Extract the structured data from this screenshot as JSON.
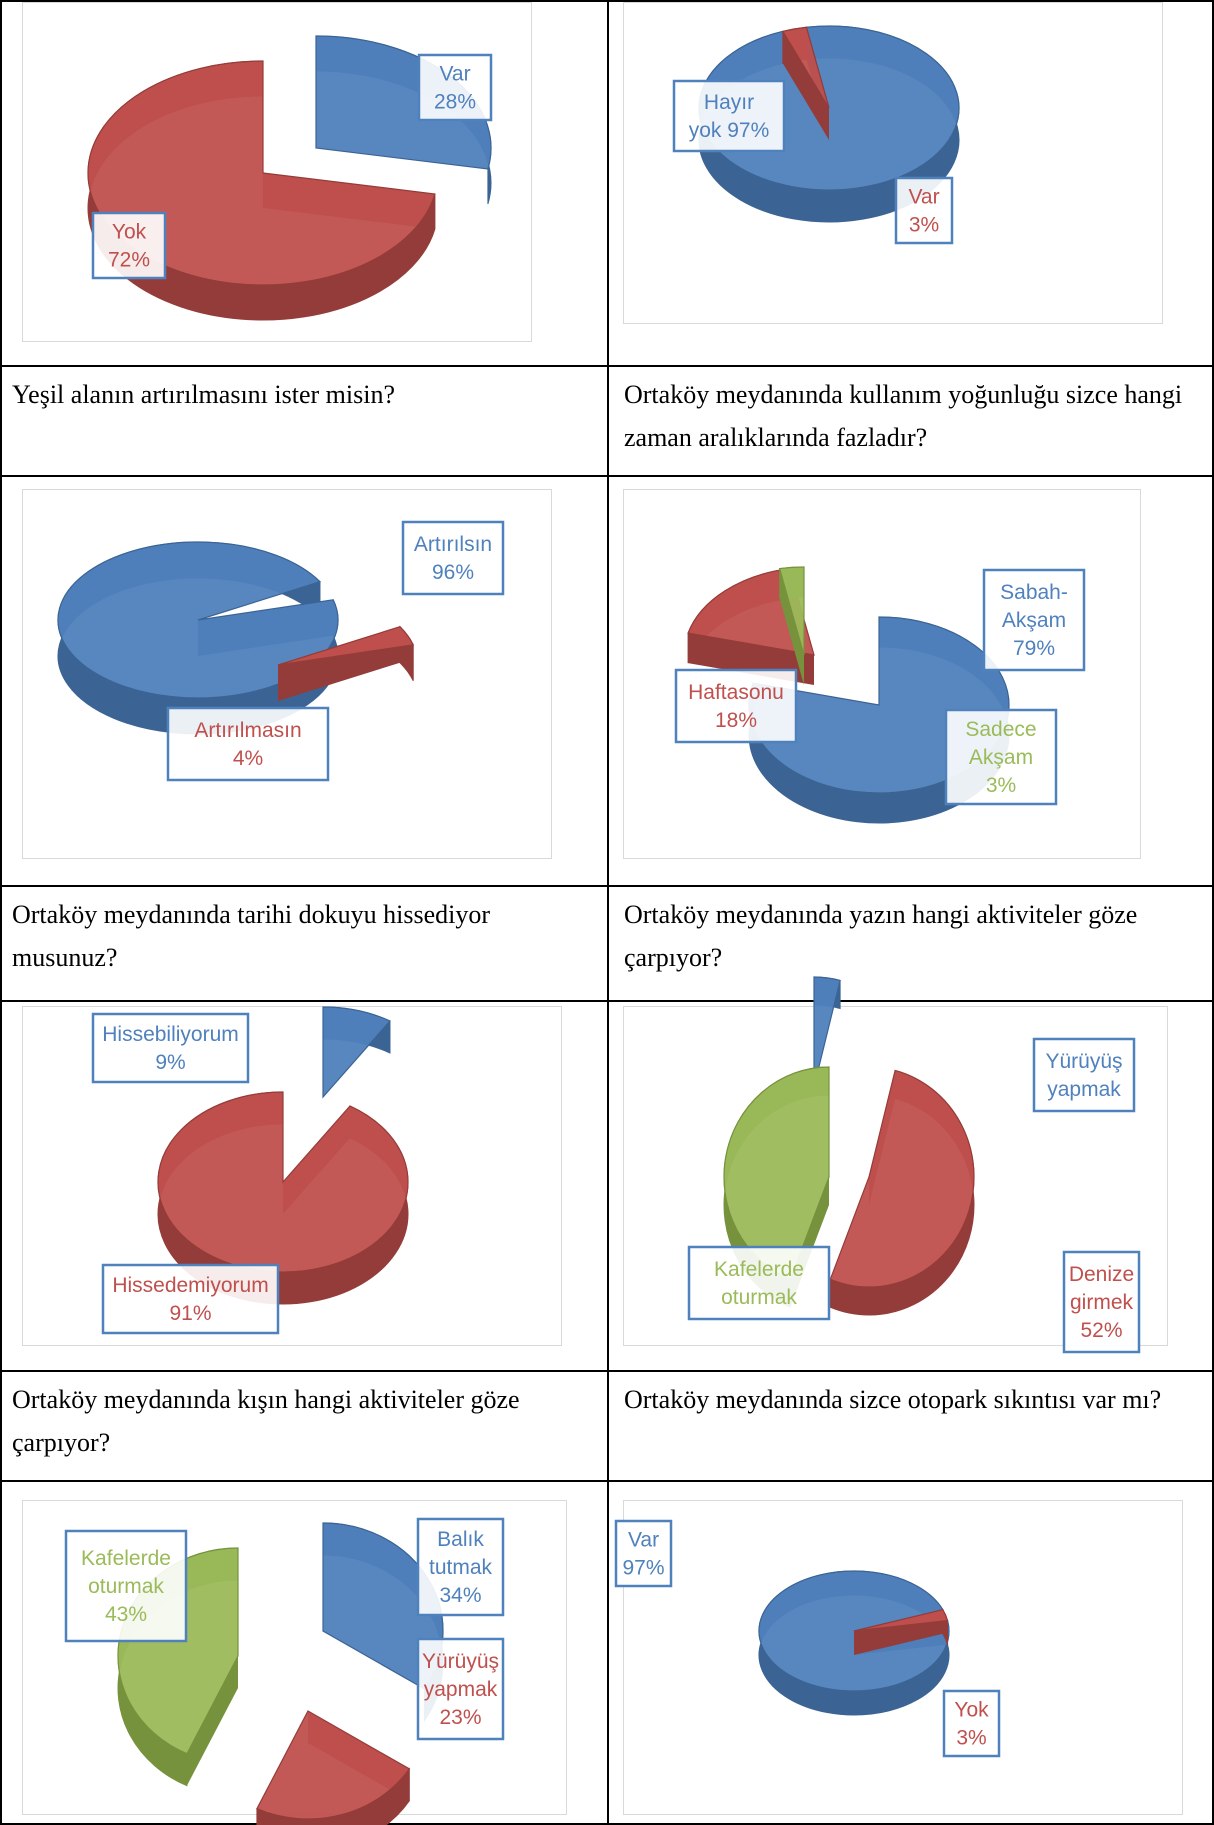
{
  "colors": {
    "blue": "#4f81bd",
    "blue_dark": "#3b6494",
    "red": "#c0504d",
    "red_dark": "#943c39",
    "green": "#9bbb59",
    "green_dark": "#76923c",
    "label_border": "#4f81bd"
  },
  "questions": [
    "Yeşil alanın artırılmasını ister misin?",
    "Ortaköy meydanında kullanım yoğunluğu sizce hangi zaman aralıklarında fazladır?",
    "Ortaköy meydanında tarihi dokuyu hissediyor musunuz?",
    "Ortaköy meydanında yazın hangi aktiviteler göze çarpıyor?",
    "Ortaköy meydanında kışın hangi aktiviteler göze çarpıyor?",
    "Ortaköy meydanında sizce otopark sıkıntısı var mı?"
  ],
  "chart_data": [
    {
      "type": "pie",
      "series": [
        {
          "name": "Var",
          "value": 28,
          "label": [
            "Var",
            "28%"
          ],
          "color": "blue"
        },
        {
          "name": "Yok",
          "value": 72,
          "label": [
            "Yok",
            "72%"
          ],
          "color": "red"
        }
      ]
    },
    {
      "type": "pie",
      "series": [
        {
          "name": "Hayır yok",
          "value": 97,
          "label": [
            "Hayır",
            "yok 97%"
          ],
          "color": "blue"
        },
        {
          "name": "Var",
          "value": 3,
          "label": [
            "Var",
            "3%"
          ],
          "color": "red"
        }
      ]
    },
    {
      "type": "pie",
      "series": [
        {
          "name": "Artırılsın",
          "value": 96,
          "label": [
            "Artırılsın",
            "96%"
          ],
          "color": "blue"
        },
        {
          "name": "Artırılmasın",
          "value": 4,
          "label": [
            "Artırılmasın",
            "4%"
          ],
          "color": "red"
        }
      ]
    },
    {
      "type": "pie",
      "series": [
        {
          "name": "Sabah-Akşam",
          "value": 79,
          "label": [
            "Sabah-",
            "Akşam",
            "79%"
          ],
          "color": "blue"
        },
        {
          "name": "Haftasonu",
          "value": 18,
          "label": [
            "Haftasonu",
            "18%"
          ],
          "color": "red"
        },
        {
          "name": "Sadece Akşam",
          "value": 3,
          "label": [
            "Sadece",
            "Akşam",
            "3%"
          ],
          "color": "green"
        }
      ]
    },
    {
      "type": "pie",
      "series": [
        {
          "name": "Hissebiliyorum",
          "value": 9,
          "label": [
            "Hissebiliyorum",
            "9%"
          ],
          "color": "blue"
        },
        {
          "name": "Hissedemiyorum",
          "value": 91,
          "label": [
            "Hissedemiyorum",
            "91%"
          ],
          "color": "red"
        }
      ]
    },
    {
      "type": "pie",
      "series": [
        {
          "name": "Yürüyüş yapmak",
          "value": 4,
          "label": [
            "Yürüyüş",
            "yapmak"
          ],
          "color": "blue"
        },
        {
          "name": "Denize girmek",
          "value": 52,
          "label": [
            "Denize",
            "girmek",
            "52%"
          ],
          "color": "red"
        },
        {
          "name": "Kafelerde oturmak",
          "value": 44,
          "label": [
            "Kafelerde",
            "oturmak"
          ],
          "color": "green"
        }
      ]
    },
    {
      "type": "pie",
      "series": [
        {
          "name": "Balık tutmak",
          "value": 34,
          "label": [
            "Balık",
            "tutmak",
            "34%"
          ],
          "color": "blue"
        },
        {
          "name": "Yürüyüş yapmak",
          "value": 23,
          "label": [
            "Yürüyüş",
            "yapmak",
            "23%"
          ],
          "color": "red"
        },
        {
          "name": "Kafelerde oturmak",
          "value": 43,
          "label": [
            "Kafelerde",
            "oturmak",
            "43%"
          ],
          "color": "green"
        }
      ]
    },
    {
      "type": "pie",
      "series": [
        {
          "name": "Var",
          "value": 97,
          "label": [
            "Var",
            "97%"
          ],
          "color": "blue"
        },
        {
          "name": "Yok",
          "value": 3,
          "label": [
            "Yok",
            "3%"
          ],
          "color": "red"
        }
      ]
    }
  ]
}
